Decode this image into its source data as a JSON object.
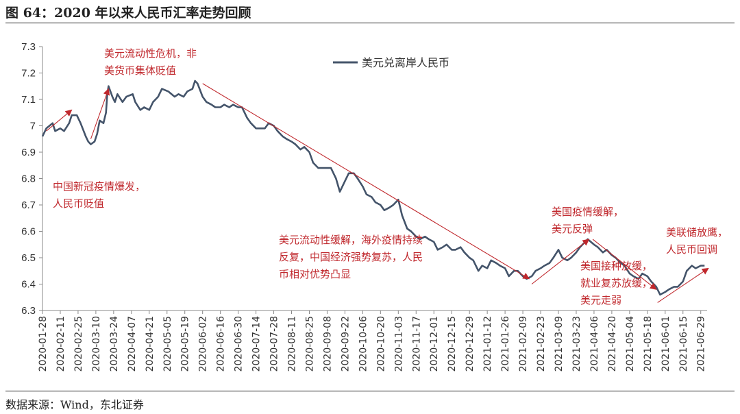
{
  "title": "图 64：2020 年以来人民币汇率走势回顾",
  "source": "数据来源：Wind，东北证券",
  "chart_data": {
    "type": "line",
    "series": [
      {
        "name": "美元兑离岸人民币",
        "color": "#44546a",
        "points": [
          [
            "2020-01-28",
            6.96
          ],
          [
            "2020-01-31",
            6.99
          ],
          [
            "2020-02-05",
            7.01
          ],
          [
            "2020-02-07",
            6.98
          ],
          [
            "2020-02-11",
            6.99
          ],
          [
            "2020-02-14",
            6.98
          ],
          [
            "2020-02-18",
            7.01
          ],
          [
            "2020-02-20",
            7.04
          ],
          [
            "2020-02-24",
            7.04
          ],
          [
            "2020-02-27",
            7.01
          ],
          [
            "2020-03-02",
            6.96
          ],
          [
            "2020-03-04",
            6.94
          ],
          [
            "2020-03-06",
            6.93
          ],
          [
            "2020-03-09",
            6.94
          ],
          [
            "2020-03-11",
            6.97
          ],
          [
            "2020-03-13",
            7.02
          ],
          [
            "2020-03-16",
            7.01
          ],
          [
            "2020-03-18",
            7.05
          ],
          [
            "2020-03-19",
            7.12
          ],
          [
            "2020-03-20",
            7.15
          ],
          [
            "2020-03-23",
            7.11
          ],
          [
            "2020-03-25",
            7.09
          ],
          [
            "2020-03-27",
            7.12
          ],
          [
            "2020-03-31",
            7.09
          ],
          [
            "2020-04-03",
            7.11
          ],
          [
            "2020-04-08",
            7.12
          ],
          [
            "2020-04-10",
            7.09
          ],
          [
            "2020-04-14",
            7.06
          ],
          [
            "2020-04-17",
            7.07
          ],
          [
            "2020-04-21",
            7.06
          ],
          [
            "2020-04-24",
            7.09
          ],
          [
            "2020-04-28",
            7.11
          ],
          [
            "2020-05-01",
            7.14
          ],
          [
            "2020-05-06",
            7.13
          ],
          [
            "2020-05-11",
            7.11
          ],
          [
            "2020-05-14",
            7.12
          ],
          [
            "2020-05-18",
            7.11
          ],
          [
            "2020-05-21",
            7.13
          ],
          [
            "2020-05-25",
            7.14
          ],
          [
            "2020-05-27",
            7.17
          ],
          [
            "2020-05-29",
            7.16
          ],
          [
            "2020-06-02",
            7.11
          ],
          [
            "2020-06-05",
            7.09
          ],
          [
            "2020-06-09",
            7.08
          ],
          [
            "2020-06-12",
            7.07
          ],
          [
            "2020-06-16",
            7.07
          ],
          [
            "2020-06-19",
            7.08
          ],
          [
            "2020-06-23",
            7.07
          ],
          [
            "2020-06-26",
            7.08
          ],
          [
            "2020-06-30",
            7.07
          ],
          [
            "2020-07-03",
            7.07
          ],
          [
            "2020-07-07",
            7.03
          ],
          [
            "2020-07-10",
            7.01
          ],
          [
            "2020-07-14",
            6.99
          ],
          [
            "2020-07-17",
            6.99
          ],
          [
            "2020-07-21",
            6.99
          ],
          [
            "2020-07-24",
            7.01
          ],
          [
            "2020-07-28",
            7.0
          ],
          [
            "2020-07-31",
            6.98
          ],
          [
            "2020-08-04",
            6.96
          ],
          [
            "2020-08-07",
            6.95
          ],
          [
            "2020-08-11",
            6.94
          ],
          [
            "2020-08-14",
            6.93
          ],
          [
            "2020-08-18",
            6.91
          ],
          [
            "2020-08-21",
            6.92
          ],
          [
            "2020-08-25",
            6.9
          ],
          [
            "2020-08-28",
            6.86
          ],
          [
            "2020-09-01",
            6.84
          ],
          [
            "2020-09-04",
            6.84
          ],
          [
            "2020-09-08",
            6.84
          ],
          [
            "2020-09-11",
            6.84
          ],
          [
            "2020-09-15",
            6.8
          ],
          [
            "2020-09-18",
            6.75
          ],
          [
            "2020-09-22",
            6.79
          ],
          [
            "2020-09-25",
            6.82
          ],
          [
            "2020-09-29",
            6.82
          ],
          [
            "2020-10-02",
            6.8
          ],
          [
            "2020-10-06",
            6.77
          ],
          [
            "2020-10-09",
            6.74
          ],
          [
            "2020-10-13",
            6.73
          ],
          [
            "2020-10-16",
            6.71
          ],
          [
            "2020-10-20",
            6.7
          ],
          [
            "2020-10-23",
            6.68
          ],
          [
            "2020-10-27",
            6.69
          ],
          [
            "2020-10-30",
            6.7
          ],
          [
            "2020-11-03",
            6.72
          ],
          [
            "2020-11-06",
            6.66
          ],
          [
            "2020-11-10",
            6.61
          ],
          [
            "2020-11-13",
            6.6
          ],
          [
            "2020-11-17",
            6.58
          ],
          [
            "2020-11-20",
            6.57
          ],
          [
            "2020-11-24",
            6.58
          ],
          [
            "2020-11-27",
            6.57
          ],
          [
            "2020-12-01",
            6.56
          ],
          [
            "2020-12-04",
            6.53
          ],
          [
            "2020-12-08",
            6.54
          ],
          [
            "2020-12-11",
            6.55
          ],
          [
            "2020-12-15",
            6.53
          ],
          [
            "2020-12-18",
            6.53
          ],
          [
            "2020-12-22",
            6.54
          ],
          [
            "2020-12-25",
            6.52
          ],
          [
            "2020-12-29",
            6.5
          ],
          [
            "2021-01-01",
            6.49
          ],
          [
            "2021-01-05",
            6.45
          ],
          [
            "2021-01-08",
            6.47
          ],
          [
            "2021-01-12",
            6.46
          ],
          [
            "2021-01-15",
            6.49
          ],
          [
            "2021-01-19",
            6.48
          ],
          [
            "2021-01-22",
            6.47
          ],
          [
            "2021-01-26",
            6.46
          ],
          [
            "2021-01-29",
            6.43
          ],
          [
            "2021-02-02",
            6.45
          ],
          [
            "2021-02-05",
            6.45
          ],
          [
            "2021-02-09",
            6.43
          ],
          [
            "2021-02-12",
            6.42
          ],
          [
            "2021-02-16",
            6.43
          ],
          [
            "2021-02-19",
            6.45
          ],
          [
            "2021-02-23",
            6.46
          ],
          [
            "2021-02-26",
            6.47
          ],
          [
            "2021-03-02",
            6.48
          ],
          [
            "2021-03-05",
            6.5
          ],
          [
            "2021-03-09",
            6.53
          ],
          [
            "2021-03-12",
            6.5
          ],
          [
            "2021-03-16",
            6.49
          ],
          [
            "2021-03-19",
            6.5
          ],
          [
            "2021-03-23",
            6.52
          ],
          [
            "2021-03-26",
            6.54
          ],
          [
            "2021-03-30",
            6.56
          ],
          [
            "2021-04-01",
            6.57
          ],
          [
            "2021-04-06",
            6.55
          ],
          [
            "2021-04-09",
            6.54
          ],
          [
            "2021-04-13",
            6.52
          ],
          [
            "2021-04-16",
            6.53
          ],
          [
            "2021-04-20",
            6.51
          ],
          [
            "2021-04-23",
            6.5
          ],
          [
            "2021-04-27",
            6.48
          ],
          [
            "2021-04-30",
            6.47
          ],
          [
            "2021-05-04",
            6.44
          ],
          [
            "2021-05-07",
            6.43
          ],
          [
            "2021-05-11",
            6.42
          ],
          [
            "2021-05-14",
            6.44
          ],
          [
            "2021-05-18",
            6.43
          ],
          [
            "2021-05-21",
            6.41
          ],
          [
            "2021-05-25",
            6.39
          ],
          [
            "2021-05-28",
            6.36
          ],
          [
            "2021-06-01",
            6.37
          ],
          [
            "2021-06-04",
            6.38
          ],
          [
            "2021-06-08",
            6.39
          ],
          [
            "2021-06-11",
            6.39
          ],
          [
            "2021-06-15",
            6.41
          ],
          [
            "2021-06-18",
            6.45
          ],
          [
            "2021-06-22",
            6.47
          ],
          [
            "2021-06-25",
            6.46
          ],
          [
            "2021-06-29",
            6.47
          ],
          [
            "2021-07-02",
            6.47
          ]
        ]
      }
    ],
    "x_tick_labels": [
      "2020-01-28",
      "2020-02-11",
      "2020-02-25",
      "2020-03-10",
      "2020-03-24",
      "2020-04-07",
      "2020-04-21",
      "2020-05-05",
      "2020-05-19",
      "2020-06-02",
      "2020-06-16",
      "2020-06-30",
      "2020-07-14",
      "2020-07-28",
      "2020-08-11",
      "2020-08-25",
      "2020-09-08",
      "2020-09-22",
      "2020-10-06",
      "2020-10-20",
      "2020-11-03",
      "2020-11-17",
      "2020-12-01",
      "2020-12-15",
      "2020-12-29",
      "2021-01-12",
      "2021-01-26",
      "2021-02-09",
      "2021-02-23",
      "2021-03-09",
      "2021-03-23",
      "2021-04-06",
      "2021-04-20",
      "2021-05-04",
      "2021-05-18",
      "2021-06-01",
      "2021-06-15",
      "2021-06-29"
    ],
    "x_range": [
      "2020-01-28",
      "2021-07-04"
    ],
    "ylim": [
      6.3,
      7.3
    ],
    "y_ticks": [
      "6.3",
      "6.4",
      "6.5",
      "6.6",
      "6.7",
      "6.8",
      "6.9",
      "7",
      "7.1",
      "7.2",
      "7.3"
    ],
    "grid": false,
    "legend_placement": "top-center",
    "annotation_color": "#c0282d",
    "annotations": [
      {
        "lines": [
          "美元流动性危机，非",
          "美货币集体贬值"
        ]
      },
      {
        "lines": [
          "中国新冠疫情爆发，",
          "人民币贬值"
        ]
      },
      {
        "lines": [
          "美元流动性缓解，海外疫情持续",
          "反复，中国经济强势复苏，人民",
          "币相对优势凸显"
        ]
      },
      {
        "lines": [
          "美国疫情缓解，",
          "美元反弹"
        ]
      },
      {
        "lines": [
          "美国接种放缓，",
          "就业复苏放缓，",
          "美元走弱"
        ]
      },
      {
        "lines": [
          "美联储放鹰，",
          "人民币回调"
        ]
      }
    ],
    "trend_arrows": [
      {
        "from": [
          "2020-01-31",
          6.98
        ],
        "to": [
          "2020-02-20",
          7.06
        ]
      },
      {
        "from": [
          "2020-03-06",
          6.95
        ],
        "to": [
          "2020-03-20",
          7.14
        ]
      },
      {
        "from": [
          "2020-06-02",
          7.16
        ],
        "to": [
          "2021-02-14",
          6.42
        ]
      },
      {
        "from": [
          "2021-02-16",
          6.4
        ],
        "to": [
          "2021-04-02",
          6.57
        ]
      },
      {
        "from": [
          "2021-04-05",
          6.57
        ],
        "to": [
          "2021-05-25",
          6.38
        ]
      },
      {
        "from": [
          "2021-05-26",
          6.33
        ],
        "to": [
          "2021-07-05",
          6.46
        ]
      }
    ]
  }
}
